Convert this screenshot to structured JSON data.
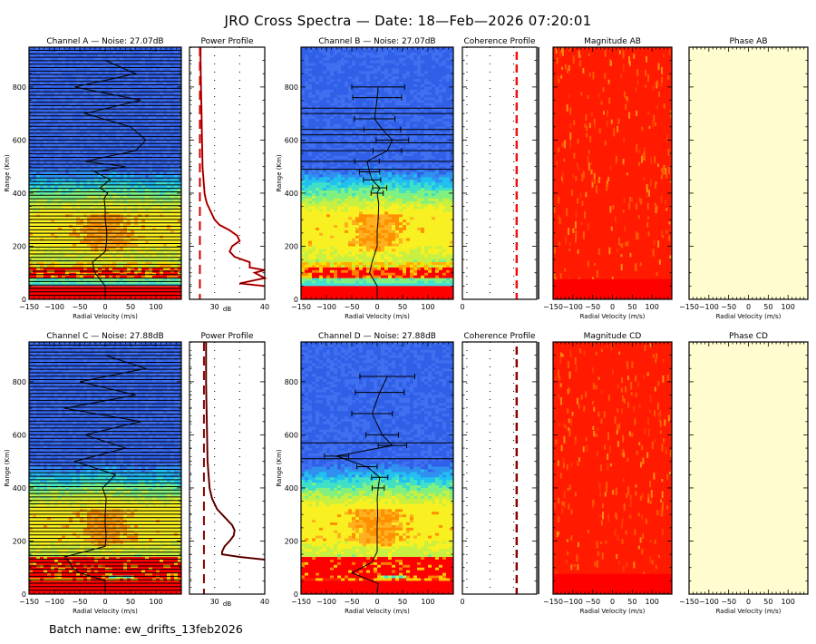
{
  "title": "JRO Cross Spectra — Date: 18—Feb—2026 07:20:01",
  "batch_name": "Batch name: ew_drifts_13feb2026",
  "colors": {
    "spectra_low": "#3050e0",
    "spectra_mid": "#20c8e0",
    "spectra_warm": "#f0f020",
    "spectra_high": "#ff0000",
    "profile_line": "#8b0000",
    "profile_line_bright": "#ff0000",
    "noise_dash_top": "#cc0000",
    "noise_dash_bottom": "#8b0000",
    "magnitude_fill": "#ff1a00",
    "phase_fill": "#fffdd0"
  },
  "chart_data": [
    {
      "id": "channel-a",
      "type": "heatmap",
      "title": "Channel A — Noise: 27.07dB",
      "xlabel": "Radial Velocity (m/s)",
      "ylabel": "Range (Km)",
      "xlim": [
        -150,
        150
      ],
      "ylim": [
        0,
        950
      ],
      "xticks": [
        "−150",
        "−100",
        "−50",
        "0",
        "50",
        "100"
      ],
      "xtick_values": [
        -150,
        -100,
        -50,
        0,
        50,
        100
      ],
      "yticks": [
        "0",
        "200",
        "400",
        "600",
        "800"
      ],
      "ytick_values": [
        0,
        200,
        400,
        600,
        800
      ],
      "noise_db": 27.07,
      "doppler_ranges": [
        0,
        50,
        100,
        140,
        180,
        220,
        260,
        300,
        340,
        380,
        400,
        420,
        450,
        480,
        500,
        520,
        560,
        600,
        650,
        700,
        750,
        800,
        850,
        900
      ],
      "doppler_velocity": [
        0,
        0,
        -20,
        -25,
        0,
        3,
        3,
        0,
        0,
        -2,
        5,
        -10,
        10,
        -20,
        40,
        -40,
        60,
        80,
        50,
        -40,
        70,
        -60,
        60,
        0
      ]
    },
    {
      "id": "power-a",
      "type": "line",
      "title": "Power Profile",
      "xlabel": "dB",
      "xlim": [
        25,
        40
      ],
      "ylim": [
        0,
        950
      ],
      "xticks": [
        "30",
        "40"
      ],
      "xtick_values": [
        30,
        40
      ],
      "noise_db": 27.07,
      "range": [
        50,
        60,
        80,
        100,
        110,
        120,
        140,
        160,
        180,
        200,
        220,
        240,
        260,
        280,
        300,
        320,
        340,
        360,
        380,
        400,
        450,
        500,
        600,
        700,
        800,
        900,
        950
      ],
      "power_db": [
        40,
        35,
        40,
        38,
        40,
        37,
        37,
        34,
        33,
        33.5,
        35,
        34.5,
        33,
        31,
        30,
        29.5,
        29,
        28.5,
        28.2,
        28,
        27.8,
        27.6,
        27.5,
        27.4,
        27.3,
        27.2,
        27.2
      ]
    },
    {
      "id": "channel-b",
      "type": "heatmap",
      "title": "Channel B — Noise: 27.07dB",
      "xlabel": "Radial Velocity (m/s)",
      "ylabel": "Range (Km)",
      "xlim": [
        -150,
        150
      ],
      "ylim": [
        0,
        950
      ],
      "xticks": [
        "−150",
        "−100",
        "−50",
        "0",
        "50",
        "100"
      ],
      "xtick_values": [
        -150,
        -100,
        -50,
        0,
        50,
        100
      ],
      "yticks": [
        "0",
        "200",
        "400",
        "600",
        "800"
      ],
      "ytick_values": [
        0,
        200,
        400,
        600,
        800
      ],
      "noise_db": 27.07,
      "doppler_ranges": [
        0,
        50,
        100,
        140,
        200,
        260,
        300,
        360,
        400,
        420,
        450,
        480,
        520,
        560,
        600,
        640,
        680,
        760,
        800
      ],
      "doppler_velocity": [
        0,
        0,
        -15,
        -10,
        0,
        0,
        2,
        3,
        0,
        5,
        -10,
        -15,
        -20,
        20,
        30,
        10,
        -5,
        0,
        2
      ]
    },
    {
      "id": "coherence-ab",
      "type": "line",
      "title": "Coherence Profile",
      "xlim": [
        0,
        1
      ],
      "ylim": [
        0,
        950
      ],
      "xticks": [
        "0"
      ],
      "xtick_values": [
        0
      ]
    },
    {
      "id": "magnitude-ab",
      "type": "heatmap",
      "title": "Magnitude AB",
      "xlabel": "Radial Velocity (m/s)",
      "xlim": [
        -150,
        150
      ],
      "ylim": [
        0,
        950
      ],
      "xticks": [
        "−150",
        "−100",
        "−50",
        "0",
        "50",
        "100"
      ],
      "xtick_values": [
        -150,
        -100,
        -50,
        0,
        50,
        100
      ]
    },
    {
      "id": "phase-ab",
      "type": "heatmap",
      "title": "Phase AB",
      "xlabel": "Radial Velocity (m/s)",
      "xlim": [
        -150,
        150
      ],
      "ylim": [
        0,
        950
      ],
      "xticks": [
        "−150",
        "−100",
        "−50",
        "0",
        "50",
        "100"
      ],
      "xtick_values": [
        -150,
        -100,
        -50,
        0,
        50,
        100
      ]
    },
    {
      "id": "channel-c",
      "type": "heatmap",
      "title": "Channel C — Noise: 27.88dB",
      "xlabel": "Radial Velocity (m/s)",
      "ylabel": "Range (Km)",
      "xlim": [
        -150,
        150
      ],
      "ylim": [
        0,
        950
      ],
      "xticks": [
        "−150",
        "−100",
        "−50",
        "0",
        "50",
        "100"
      ],
      "xtick_values": [
        -150,
        -100,
        -50,
        0,
        50,
        100
      ],
      "yticks": [
        "0",
        "200",
        "400",
        "600",
        "800"
      ],
      "ytick_values": [
        0,
        200,
        400,
        600,
        800
      ],
      "noise_db": 27.88,
      "doppler_ranges": [
        0,
        50,
        80,
        100,
        120,
        140,
        180,
        220,
        260,
        300,
        360,
        400,
        450,
        500,
        550,
        600,
        650,
        700,
        750,
        800,
        850,
        900
      ],
      "doppler_velocity": [
        0,
        0,
        -50,
        -65,
        -70,
        -80,
        0,
        2,
        0,
        0,
        2,
        -5,
        20,
        -60,
        40,
        -40,
        70,
        -80,
        60,
        -50,
        80,
        0
      ]
    },
    {
      "id": "power-c",
      "type": "line",
      "title": "Power Profile",
      "xlabel": "dB",
      "xlim": [
        25,
        40
      ],
      "ylim": [
        0,
        950
      ],
      "xticks": [
        "30",
        "40"
      ],
      "xtick_values": [
        30,
        40
      ],
      "noise_db": 27.88,
      "range": [
        130,
        140,
        150,
        160,
        180,
        200,
        220,
        240,
        260,
        280,
        300,
        320,
        340,
        360,
        400,
        450,
        500,
        600,
        700,
        800,
        900,
        950
      ],
      "power_db": [
        40,
        35,
        31.5,
        31.5,
        32,
        33,
        33.8,
        34,
        33.5,
        32.5,
        31.5,
        30.5,
        30,
        29.5,
        29,
        28.8,
        28.6,
        28.5,
        28.4,
        28.3,
        28.3,
        28.3
      ]
    },
    {
      "id": "channel-d",
      "type": "heatmap",
      "title": "Channel D — Noise: 27.88dB",
      "xlabel": "Radial Velocity (m/s)",
      "ylabel": "Range (Km)",
      "xlim": [
        -150,
        150
      ],
      "ylim": [
        0,
        950
      ],
      "xticks": [
        "−150",
        "−100",
        "−50",
        "0",
        "50",
        "100"
      ],
      "xtick_values": [
        -150,
        -100,
        -50,
        0,
        50,
        100
      ],
      "yticks": [
        "0",
        "200",
        "400",
        "600",
        "800"
      ],
      "ytick_values": [
        0,
        200,
        400,
        600,
        800
      ],
      "noise_db": 27.88,
      "doppler_ranges": [
        0,
        40,
        80,
        120,
        160,
        200,
        260,
        300,
        360,
        400,
        440,
        480,
        520,
        560,
        600,
        680,
        760,
        820
      ],
      "doppler_velocity": [
        0,
        2,
        -50,
        -10,
        0,
        0,
        0,
        1,
        0,
        2,
        5,
        -20,
        -80,
        30,
        10,
        -10,
        5,
        20
      ]
    },
    {
      "id": "coherence-cd",
      "type": "line",
      "title": "Coherence Profile",
      "xlim": [
        0,
        1
      ],
      "ylim": [
        0,
        950
      ],
      "xticks": [
        "0"
      ],
      "xtick_values": [
        0
      ]
    },
    {
      "id": "magnitude-cd",
      "type": "heatmap",
      "title": "Magnitude CD",
      "xlabel": "Radial Velocity (m/s)",
      "xlim": [
        -150,
        150
      ],
      "ylim": [
        0,
        950
      ],
      "xticks": [
        "−150",
        "−100",
        "−50",
        "0",
        "50",
        "100"
      ],
      "xtick_values": [
        -150,
        -100,
        -50,
        0,
        50,
        100
      ]
    },
    {
      "id": "phase-cd",
      "type": "heatmap",
      "title": "Phase CD",
      "xlabel": "Radial Velocity (m/s)",
      "xlim": [
        -150,
        150
      ],
      "ylim": [
        0,
        950
      ],
      "xticks": [
        "−150",
        "−100",
        "−50",
        "0",
        "50",
        "100"
      ],
      "xtick_values": [
        -150,
        -100,
        -50,
        0,
        50,
        100
      ]
    }
  ]
}
